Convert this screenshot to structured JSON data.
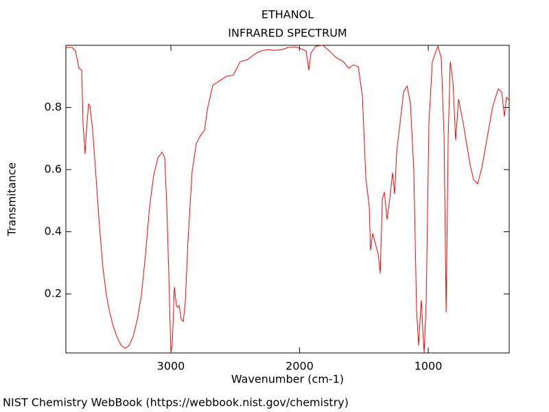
{
  "chart_data": {
    "type": "line",
    "title": "ETHANOL",
    "subtitle": "INFRARED SPECTRUM",
    "x_label": "Wavenumber (cm-1)",
    "y_label": "Transmitance",
    "source": "NIST Chemistry WebBook (https://webbook.nist.gov/chemistry)",
    "color": "#ff0000",
    "xlim": [
      3816,
      371
    ],
    "ylim": [
      0.01,
      1.0
    ],
    "xticks": [
      3000,
      2000,
      1000
    ],
    "yticks": [
      0.2,
      0.4,
      0.6,
      0.8
    ],
    "x": [
      3816,
      3768,
      3741,
      3715,
      3693,
      3683,
      3667,
      3656,
      3640,
      3629,
      3608,
      3581,
      3555,
      3528,
      3501,
      3475,
      3448,
      3421,
      3389,
      3357,
      3325,
      3293,
      3261,
      3229,
      3197,
      3165,
      3133,
      3101,
      3069,
      3048,
      3032,
      3016,
      3000,
      2989,
      2973,
      2957,
      2947,
      2936,
      2920,
      2904,
      2888,
      2867,
      2835,
      2803,
      2771,
      2739,
      2717,
      2675,
      2621,
      2568,
      2515,
      2461,
      2408,
      2355,
      2301,
      2248,
      2195,
      2141,
      2088,
      2035,
      1981,
      1949,
      1928,
      1912,
      1875,
      1821,
      1768,
      1715,
      1661,
      1619,
      1581,
      1544,
      1512,
      1485,
      1459,
      1448,
      1432,
      1411,
      1389,
      1373,
      1357,
      1341,
      1320,
      1299,
      1277,
      1261,
      1245,
      1219,
      1192,
      1165,
      1139,
      1112,
      1091,
      1075,
      1059,
      1053,
      1043,
      1032,
      1016,
      995,
      968,
      925,
      899,
      877,
      861,
      845,
      829,
      808,
      787,
      765,
      728,
      675,
      648,
      616,
      584,
      541,
      499,
      456,
      429,
      408,
      392,
      371
    ],
    "values": [
      0.993,
      0.993,
      0.982,
      0.926,
      0.92,
      0.749,
      0.65,
      0.727,
      0.811,
      0.804,
      0.727,
      0.572,
      0.417,
      0.284,
      0.196,
      0.14,
      0.096,
      0.063,
      0.036,
      0.025,
      0.034,
      0.063,
      0.118,
      0.196,
      0.328,
      0.483,
      0.583,
      0.638,
      0.656,
      0.638,
      0.483,
      0.262,
      0.01,
      0.04,
      0.222,
      0.162,
      0.156,
      0.162,
      0.118,
      0.111,
      0.173,
      0.373,
      0.594,
      0.683,
      0.709,
      0.727,
      0.793,
      0.871,
      0.886,
      0.9,
      0.904,
      0.948,
      0.953,
      0.97,
      0.982,
      0.986,
      0.984,
      0.986,
      0.993,
      0.995,
      0.988,
      0.982,
      0.92,
      0.975,
      0.997,
      1.0,
      0.982,
      0.96,
      0.948,
      0.926,
      0.937,
      0.931,
      0.838,
      0.572,
      0.483,
      0.34,
      0.395,
      0.362,
      0.328,
      0.266,
      0.506,
      0.528,
      0.439,
      0.506,
      0.59,
      0.521,
      0.661,
      0.749,
      0.849,
      0.869,
      0.815,
      0.594,
      0.151,
      0.034,
      0.151,
      0.18,
      0.085,
      0.01,
      0.173,
      0.749,
      0.948,
      0.997,
      0.96,
      0.705,
      0.14,
      0.705,
      0.948,
      0.882,
      0.694,
      0.827,
      0.749,
      0.616,
      0.568,
      0.554,
      0.605,
      0.705,
      0.804,
      0.86,
      0.849,
      0.771,
      0.833,
      0.822
    ]
  }
}
